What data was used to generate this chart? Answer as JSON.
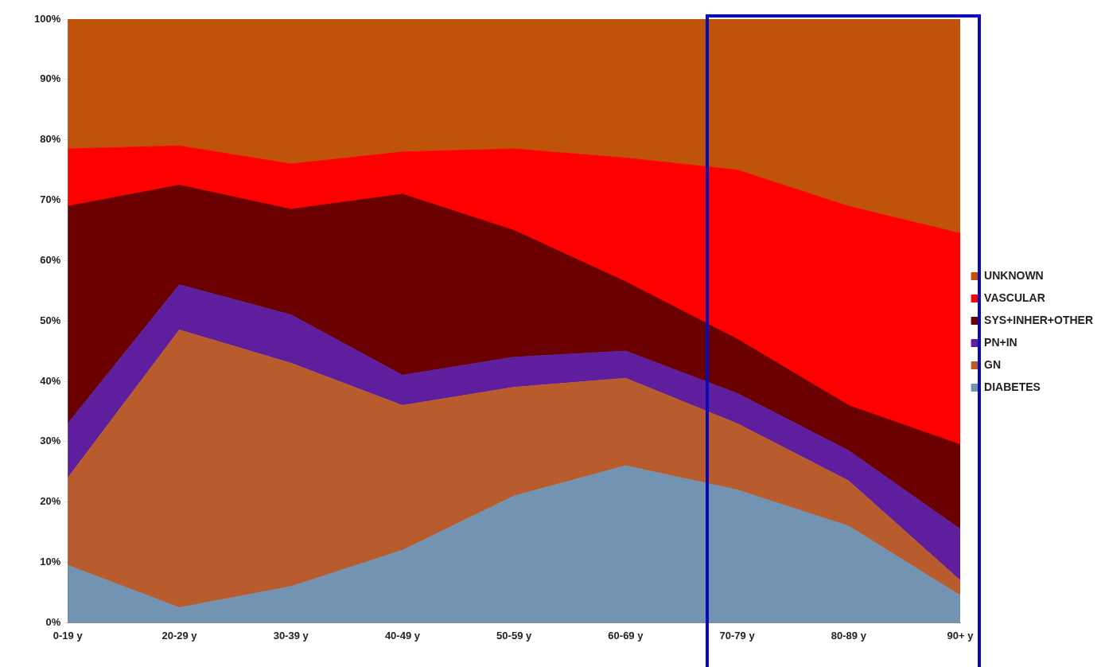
{
  "chart_data": {
    "type": "area",
    "stacked": true,
    "categories": [
      "0-19 y",
      "20-29 y",
      "30-39 y",
      "40-49 y",
      "50-59 y",
      "60-69 y",
      "70-79 y",
      "80-89 y",
      "90+ y"
    ],
    "series": [
      {
        "name": "DIABETES",
        "color": "#7393b3",
        "values": [
          9.5,
          2.5,
          6,
          12,
          21,
          26,
          22,
          16,
          4.5
        ]
      },
      {
        "name": "GN",
        "color": "#b85c2e",
        "values": [
          14.5,
          46,
          37,
          24,
          18,
          14.5,
          11,
          7.5,
          2.5
        ]
      },
      {
        "name": "PN+IN",
        "color": "#5e1e9e",
        "values": [
          9,
          7.5,
          8,
          5,
          5,
          4.5,
          5,
          5,
          8.5
        ]
      },
      {
        "name": "SYS+INHER+OTHER",
        "color": "#6b0000",
        "values": [
          36,
          16.5,
          17.5,
          30,
          21,
          11.5,
          9,
          7.5,
          14
        ]
      },
      {
        "name": "VASCULAR",
        "color": "#ff0000",
        "values": [
          9.5,
          6.5,
          7.5,
          7,
          13.5,
          20.5,
          28,
          33,
          35
        ]
      },
      {
        "name": "UNKNOWN",
        "color": "#c0530a",
        "values": [
          21.5,
          21,
          24,
          22,
          21.5,
          23,
          25,
          31,
          35.5
        ]
      }
    ],
    "ylim": [
      0,
      100
    ],
    "yticks": [
      {
        "value": 0,
        "label": "0%"
      },
      {
        "value": 10,
        "label": "10%"
      },
      {
        "value": 20,
        "label": "20%"
      },
      {
        "value": 30,
        "label": "30%"
      },
      {
        "value": 40,
        "label": "40%"
      },
      {
        "value": 50,
        "label": "50%"
      },
      {
        "value": 60,
        "label": "60%"
      },
      {
        "value": 70,
        "label": "70%"
      },
      {
        "value": 80,
        "label": "80%"
      },
      {
        "value": 90,
        "label": "90%"
      },
      {
        "value": 100,
        "label": "100%"
      }
    ],
    "grid": false,
    "legend": "right"
  }
}
